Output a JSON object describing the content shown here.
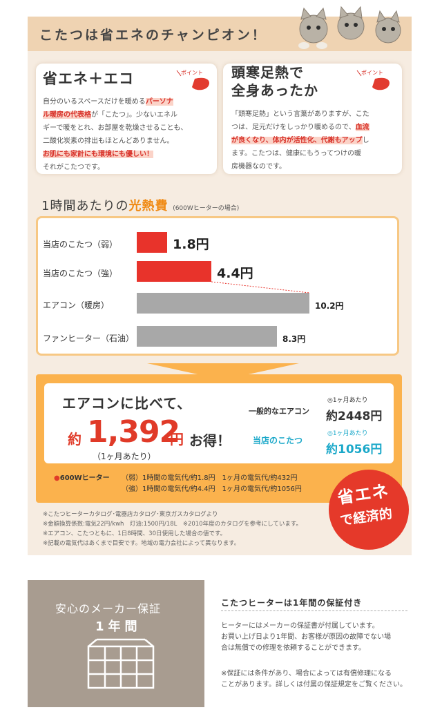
{
  "header": {
    "title": "こたつは省エネのチャンピオン！"
  },
  "left_card": {
    "title": "省エネ＋エコ",
    "badge": "ポイント",
    "lines": [
      [
        "自分のいるスペースだけを暖める",
        "パーソナ"
      ],
      [
        "ル暖房の代表格",
        "が「こたつ」。少ないエネル"
      ],
      [
        "ギーで暖をとれ、お部屋を乾燥させることも、"
      ],
      [
        "二酸化炭素の排出もほとんどありません。"
      ],
      [
        "お肌にも家計にも環境にも優しい！"
      ],
      [
        "それがこたつです。"
      ]
    ]
  },
  "right_card": {
    "title_line1": "頭寒足熱で",
    "title_line2": "全身あったか",
    "badge": "ポイント",
    "lines": [
      [
        "「頭寒足熱」という言葉がありますが、こた"
      ],
      [
        "つは、足元だけをしっかり暖めるので、",
        "血流"
      ],
      [
        "が良くなり、体内が活性化、代謝もアップ",
        "し"
      ],
      [
        "ます。こたつは、健康にもうってつけの暖"
      ],
      [
        "房機器なのです。"
      ]
    ]
  },
  "cost_section": {
    "title_prefix": "1時間あたりの",
    "title_accent": "光熱費",
    "title_note": "(600Wヒーターの場合)"
  },
  "chart_data": {
    "type": "bar",
    "orientation": "horizontal",
    "categories": [
      "当店のこたつ（弱）",
      "当店のこたつ（強）",
      "エアコン（暖房）",
      "ファンヒーター（石油）"
    ],
    "values": [
      1.8,
      4.4,
      10.2,
      8.3
    ],
    "value_labels": [
      "1.8円",
      "4.4円",
      "10.2円",
      "8.3円"
    ],
    "unit": "円",
    "colors": [
      "#e8332b",
      "#e8332b",
      "#a8a8a8",
      "#a8a8a8"
    ],
    "xlim": [
      0,
      10.2
    ],
    "grid": false,
    "legend": "none"
  },
  "compare": {
    "heading": "エアコンに比べて、",
    "yaku": "約",
    "amount": "1,392",
    "yen": "円",
    "otoku": "お得！",
    "sub": "（1ヶ月あたり）",
    "aircon_label": "一般的なエアコン",
    "aircon_period": "◎1ヶ月あたり",
    "aircon_value": "約2448円",
    "kotatsu_label": "当店のこたつ",
    "kotatsu_period": "◎1ヶ月あたり",
    "kotatsu_value": "約1056円",
    "heater_tag_dot": "●",
    "heater_tag": "600Wヒーター",
    "heater_rows": [
      "（弱）1時間の電気代/約1.8円　1ヶ月の電気代/約432円",
      "（強）1時間の電気代/約4.4円　1ヶ月の電気代/約1056円"
    ],
    "eco_badge_1": "省エネ",
    "eco_badge_2": "で経済的"
  },
  "footnotes": [
    "※こたつヒーターカタログ･電器店カタログ･東京ガスカタログより",
    "※金額換算係数:電気22円/kwh　灯油:1500円/18L　※2010年度のカタログを参考にしています。",
    "※エアコン、こたつともに、1日8時間、30日使用した場合の値です。",
    "※記載の電気代はあくまで目安です。地域の電力会社によって異なります。"
  ],
  "warranty": {
    "image_title": "安心のメーカー保証",
    "image_years": "1年間",
    "title": "こたつヒーターは1年間の保証付き",
    "body": [
      "ヒーターにはメーカーの保証書が付属しています。",
      "お買い上げ日より1年間、お客様が原因の故障でない場",
      "合は無償での修理を依頼することができます。",
      "",
      "※保証には条件があり、場合によっては有償修理になる",
      "ことがあります。詳しくは付属の保証規定をご覧ください。"
    ]
  }
}
